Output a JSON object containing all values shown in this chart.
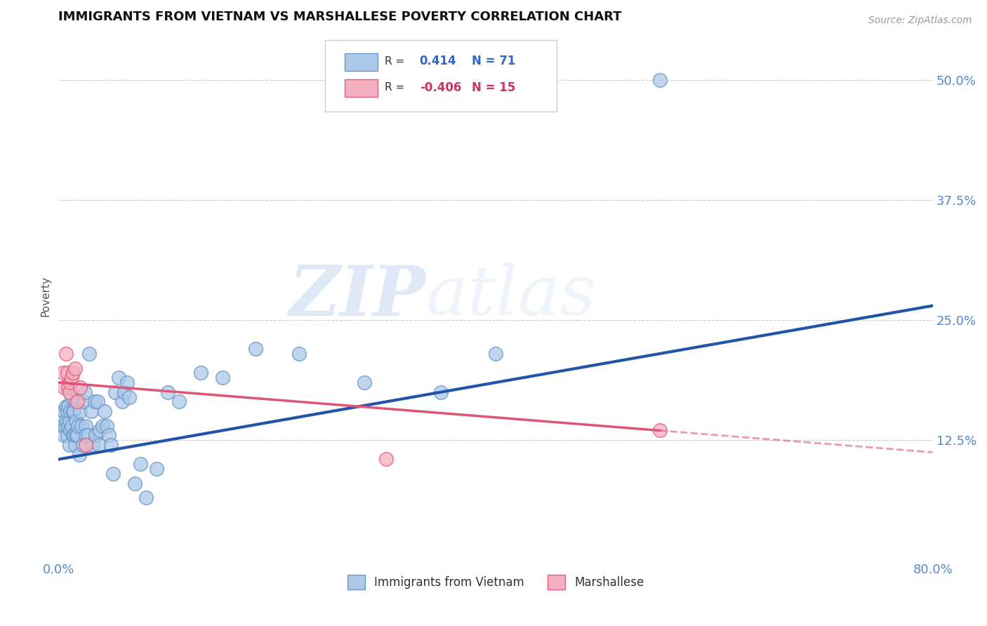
{
  "title": "IMMIGRANTS FROM VIETNAM VS MARSHALLESE POVERTY CORRELATION CHART",
  "source": "Source: ZipAtlas.com",
  "ylabel": "Poverty",
  "yticks": [
    0.125,
    0.25,
    0.375,
    0.5
  ],
  "ytick_labels": [
    "12.5%",
    "25.0%",
    "37.5%",
    "50.0%"
  ],
  "xlim": [
    0.0,
    0.8
  ],
  "ylim": [
    0.0,
    0.55
  ],
  "r_vietnam": 0.414,
  "n_vietnam": 71,
  "r_marshallese": -0.406,
  "n_marshallese": 15,
  "legend_labels": [
    "Immigrants from Vietnam",
    "Marshallese"
  ],
  "vietnam_color": "#adc8e8",
  "vietnam_edge": "#6699cc",
  "marshallese_color": "#f4afc0",
  "marshallese_edge": "#e06080",
  "trend_vietnam_color": "#2255aa",
  "trend_marshallese_color": "#e05575",
  "background_color": "#ffffff",
  "watermark_zip": "ZIP",
  "watermark_atlas": "atlas",
  "trend_v_x0": 0.0,
  "trend_v_y0": 0.105,
  "trend_v_x1": 0.8,
  "trend_v_y1": 0.265,
  "trend_m_x0": 0.0,
  "trend_m_y0": 0.185,
  "trend_m_x1": 0.55,
  "trend_m_y1": 0.135,
  "trend_m_dash_x0": 0.55,
  "trend_m_dash_x1": 0.8,
  "vietnam_x": [
    0.003,
    0.004,
    0.005,
    0.005,
    0.006,
    0.007,
    0.007,
    0.008,
    0.008,
    0.009,
    0.009,
    0.01,
    0.01,
    0.01,
    0.011,
    0.011,
    0.012,
    0.012,
    0.013,
    0.013,
    0.014,
    0.014,
    0.015,
    0.015,
    0.016,
    0.016,
    0.017,
    0.018,
    0.019,
    0.02,
    0.021,
    0.022,
    0.023,
    0.024,
    0.025,
    0.025,
    0.027,
    0.028,
    0.03,
    0.031,
    0.033,
    0.034,
    0.036,
    0.037,
    0.038,
    0.04,
    0.042,
    0.044,
    0.046,
    0.048,
    0.05,
    0.052,
    0.055,
    0.058,
    0.06,
    0.063,
    0.065,
    0.07,
    0.075,
    0.08,
    0.09,
    0.1,
    0.11,
    0.13,
    0.15,
    0.18,
    0.22,
    0.28,
    0.35,
    0.4,
    0.55
  ],
  "vietnam_y": [
    0.14,
    0.155,
    0.13,
    0.155,
    0.14,
    0.145,
    0.16,
    0.13,
    0.155,
    0.14,
    0.16,
    0.18,
    0.145,
    0.12,
    0.135,
    0.155,
    0.17,
    0.14,
    0.155,
    0.13,
    0.13,
    0.155,
    0.12,
    0.165,
    0.145,
    0.13,
    0.13,
    0.14,
    0.11,
    0.155,
    0.14,
    0.12,
    0.165,
    0.175,
    0.14,
    0.13,
    0.13,
    0.215,
    0.155,
    0.12,
    0.165,
    0.13,
    0.165,
    0.12,
    0.135,
    0.14,
    0.155,
    0.14,
    0.13,
    0.12,
    0.09,
    0.175,
    0.19,
    0.165,
    0.175,
    0.185,
    0.17,
    0.08,
    0.1,
    0.065,
    0.095,
    0.175,
    0.165,
    0.195,
    0.19,
    0.22,
    0.215,
    0.185,
    0.175,
    0.215,
    0.5
  ],
  "marshallese_x": [
    0.004,
    0.005,
    0.007,
    0.008,
    0.009,
    0.01,
    0.011,
    0.012,
    0.013,
    0.015,
    0.017,
    0.02,
    0.025,
    0.3,
    0.55
  ],
  "marshallese_y": [
    0.195,
    0.18,
    0.215,
    0.195,
    0.18,
    0.175,
    0.185,
    0.19,
    0.195,
    0.2,
    0.165,
    0.18,
    0.12,
    0.105,
    0.135
  ]
}
